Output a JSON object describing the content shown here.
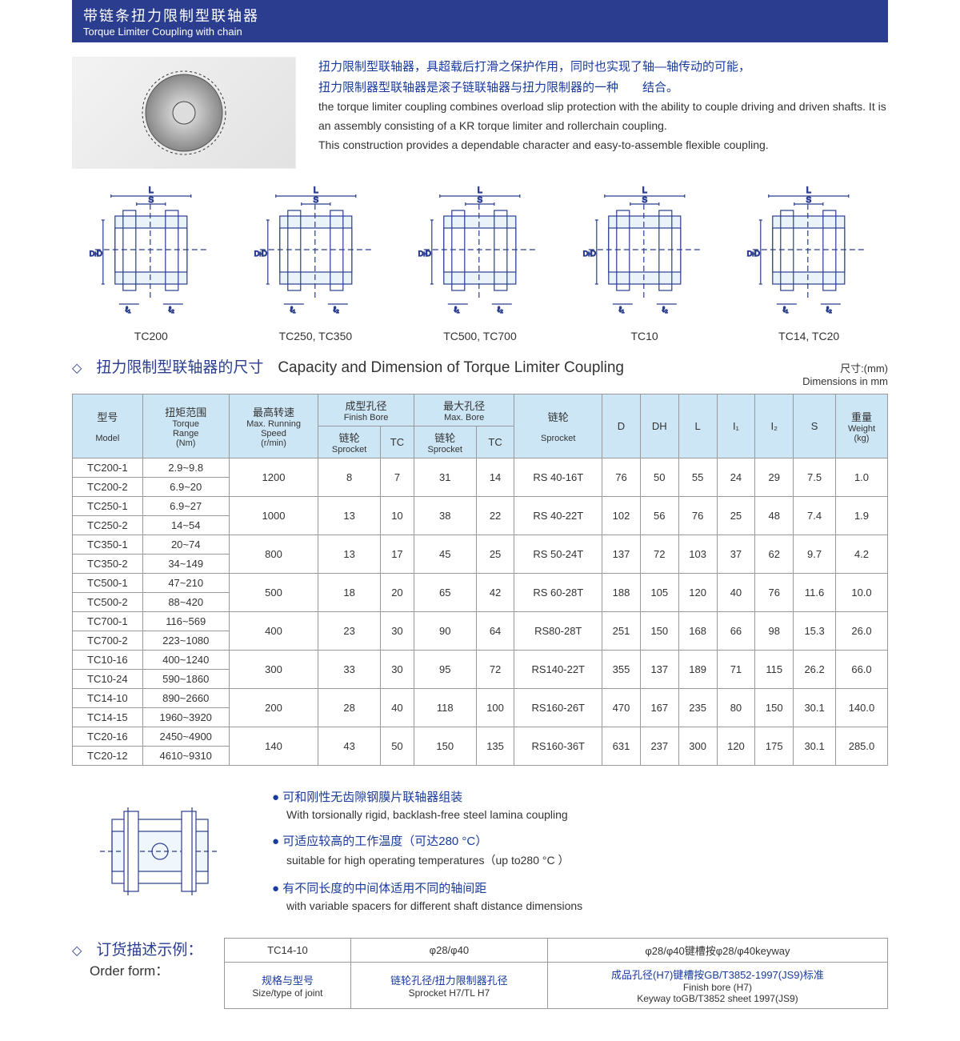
{
  "colors": {
    "brand": "#2a3d8f",
    "header_bg": "#cde6f5",
    "accent_text": "#1a3b9e",
    "border": "#999999",
    "bg": "#ffffff"
  },
  "header": {
    "cn": "带链条扭力限制型联轴器",
    "en": "Torque Limiter Coupling with chain"
  },
  "intro": {
    "cn1": "扭力限制型联轴器，具超载后打滑之保护作用，同时也实现了轴—轴传动的可能，",
    "cn2": "扭力限制器型联轴器是滚子链联轴器与扭力限制器的一种　　结合。",
    "en1": "the torque limiter coupling combines overload slip protection with the ability to couple driving and driven shafts. It  is an  assembly  consisting of a KR  torque limiter and rollerchain coupling.",
    "en2": "This construction provides a dependable character and easy-to-assemble flexible coupling."
  },
  "diagrams": [
    "TC200",
    "TC250, TC350",
    "TC500, TC700",
    "TC10",
    "TC14, TC20"
  ],
  "section1": {
    "cn": "扭力限制型联轴器的尺寸",
    "en": "Capacity and Dimension of Torque Limiter Coupling",
    "dim_cn": "尺寸:(mm)",
    "dim_en": "Dimensions in mm"
  },
  "table": {
    "headers": {
      "model_cn": "型号",
      "model_en": "Model",
      "torque_cn": "扭矩范围",
      "torque_en1": "Torque",
      "torque_en2": "Range",
      "torque_unit": "(Nm)",
      "speed_cn": "最高转速",
      "speed_en1": "Max. Running",
      "speed_en2": "Speed",
      "speed_unit": "(r/min)",
      "finish_cn": "成型孔径",
      "finish_en": "Finish Bore",
      "max_cn": "最大孔径",
      "max_en": "Max. Bore",
      "sprocket_cn": "链轮",
      "sprocket_en": "Sprocket",
      "tc": "TC",
      "chain_cn": "链轮",
      "chain_en": "Sprocket",
      "D": "D",
      "DH": "DH",
      "L": "L",
      "I1": "I₁",
      "I2": "I₂",
      "S": "S",
      "weight_cn": "重量",
      "weight_en": "Weight",
      "weight_unit": "(kg)"
    },
    "groups": [
      {
        "models": [
          {
            "m": "TC200-1",
            "t": "2.9~9.8"
          },
          {
            "m": "TC200-2",
            "t": "6.9~20"
          }
        ],
        "speed": "1200",
        "fs": "8",
        "ftc": "7",
        "ms": "31",
        "mtc": "14",
        "spr": "RS 40-16T",
        "D": "76",
        "DH": "50",
        "L": "55",
        "I1": "24",
        "I2": "29",
        "S": "7.5",
        "W": "1.0"
      },
      {
        "models": [
          {
            "m": "TC250-1",
            "t": "6.9~27"
          },
          {
            "m": "TC250-2",
            "t": "14~54"
          }
        ],
        "speed": "1000",
        "fs": "13",
        "ftc": "10",
        "ms": "38",
        "mtc": "22",
        "spr": "RS 40-22T",
        "D": "102",
        "DH": "56",
        "L": "76",
        "I1": "25",
        "I2": "48",
        "S": "7.4",
        "W": "1.9"
      },
      {
        "models": [
          {
            "m": "TC350-1",
            "t": "20~74"
          },
          {
            "m": "TC350-2",
            "t": "34~149"
          }
        ],
        "speed": "800",
        "fs": "13",
        "ftc": "17",
        "ms": "45",
        "mtc": "25",
        "spr": "RS 50-24T",
        "D": "137",
        "DH": "72",
        "L": "103",
        "I1": "37",
        "I2": "62",
        "S": "9.7",
        "W": "4.2"
      },
      {
        "models": [
          {
            "m": "TC500-1",
            "t": "47~210"
          },
          {
            "m": "TC500-2",
            "t": "88~420"
          }
        ],
        "speed": "500",
        "fs": "18",
        "ftc": "20",
        "ms": "65",
        "mtc": "42",
        "spr": "RS 60-28T",
        "D": "188",
        "DH": "105",
        "L": "120",
        "I1": "40",
        "I2": "76",
        "S": "11.6",
        "W": "10.0"
      },
      {
        "models": [
          {
            "m": "TC700-1",
            "t": "116~569"
          },
          {
            "m": "TC700-2",
            "t": "223~1080"
          }
        ],
        "speed": "400",
        "fs": "23",
        "ftc": "30",
        "ms": "90",
        "mtc": "64",
        "spr": "RS80-28T",
        "D": "251",
        "DH": "150",
        "L": "168",
        "I1": "66",
        "I2": "98",
        "S": "15.3",
        "W": "26.0"
      },
      {
        "models": [
          {
            "m": "TC10-16",
            "t": "400~1240"
          },
          {
            "m": "TC10-24",
            "t": "590~1860"
          }
        ],
        "speed": "300",
        "fs": "33",
        "ftc": "30",
        "ms": "95",
        "mtc": "72",
        "spr": "RS140-22T",
        "D": "355",
        "DH": "137",
        "L": "189",
        "I1": "71",
        "I2": "115",
        "S": "26.2",
        "W": "66.0"
      },
      {
        "models": [
          {
            "m": "TC14-10",
            "t": "890~2660"
          },
          {
            "m": "TC14-15",
            "t": "1960~3920"
          }
        ],
        "speed": "200",
        "fs": "28",
        "ftc": "40",
        "ms": "118",
        "mtc": "100",
        "spr": "RS160-26T",
        "D": "470",
        "DH": "167",
        "L": "235",
        "I1": "80",
        "I2": "150",
        "S": "30.1",
        "W": "140.0"
      },
      {
        "models": [
          {
            "m": "TC20-16",
            "t": "2450~4900"
          },
          {
            "m": "TC20-12",
            "t": "4610~9310"
          }
        ],
        "speed": "140",
        "fs": "43",
        "ftc": "50",
        "ms": "150",
        "mtc": "135",
        "spr": "RS160-36T",
        "D": "631",
        "DH": "237",
        "L": "300",
        "I1": "120",
        "I2": "175",
        "S": "30.1",
        "W": "285.0"
      }
    ]
  },
  "features": [
    {
      "cn": "可和刚性无齿隙钢膜片联轴器组装",
      "en": "With torsionally rigid, backlash-free steel lamina coupling"
    },
    {
      "cn": "可适应较高的工作温度（可达280 °C）",
      "en": "suitable for high operating temperatures（up to280 °C ）"
    },
    {
      "cn": "有不同长度的中间体适用不同的轴间距",
      "en": "with variable spacers for different shaft distance dimensions"
    }
  ],
  "order": {
    "title_cn": "订货描述示例：",
    "title_en": "Order form：",
    "row1": [
      "TC14-10",
      "φ28/φ40",
      "φ28/φ40键槽按φ28/φ40keyway"
    ],
    "row2_cn": [
      "规格与型号",
      "链轮孔径/扭力限制器孔径",
      "成品孔径(H7)键槽按GB/T3852-1997(JS9)标准"
    ],
    "row2_en": [
      "Size/type of joint",
      "Sprocket H7/TL H7",
      "Finish bore (H7)"
    ],
    "row2_en3b": "Keyway toGB/T3852 sheet 1997(JS9)"
  }
}
